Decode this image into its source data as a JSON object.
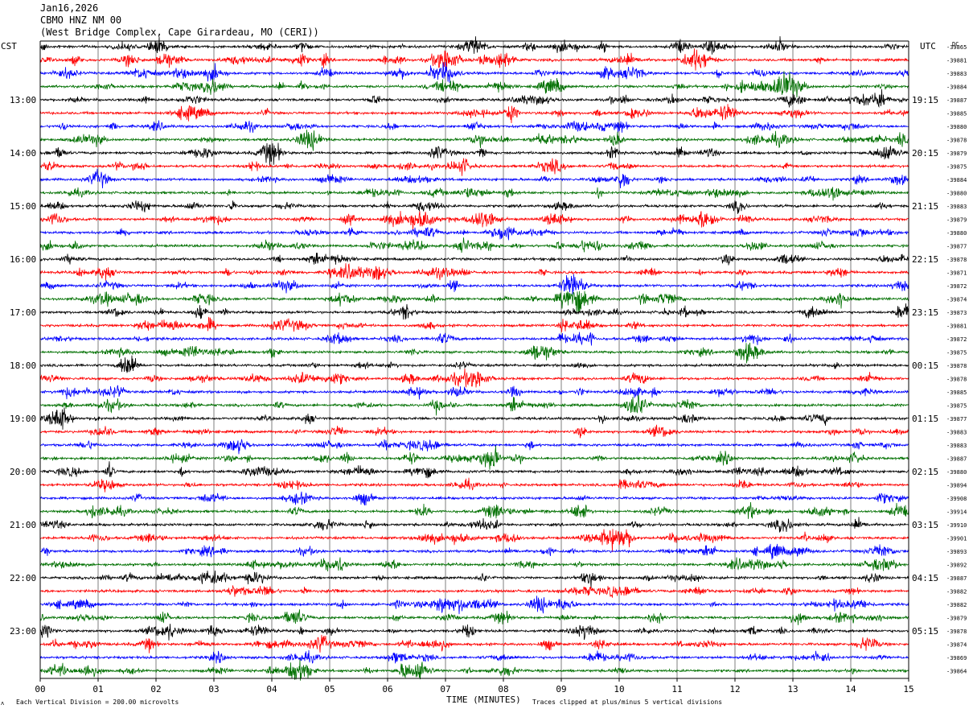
{
  "header": {
    "date": "Jan16,2026",
    "station": "CBMO HNZ NM 00",
    "location": "(West Bridge Complex, Cape Girardeau, MO (CERI))"
  },
  "axes": {
    "left_label": "CST",
    "right_label": "UTC",
    "xlabel": "TIME (MINUTES)",
    "top_right_label": "DC"
  },
  "footer": {
    "scale_note": "Each Vertical Division =  200.00 microvolts",
    "clip_note": "Traces clipped at plus/minus 5 vertical divisions"
  },
  "chart_data": {
    "type": "line",
    "subtype": "helicorder",
    "x_ticks": [
      "00",
      "01",
      "02",
      "03",
      "04",
      "05",
      "06",
      "07",
      "08",
      "09",
      "10",
      "11",
      "12",
      "13",
      "14",
      "15"
    ],
    "xlim": [
      0,
      15
    ],
    "left_hour_labels": [
      "13:00",
      "14:00",
      "15:00",
      "16:00",
      "17:00",
      "18:00",
      "19:00",
      "20:00",
      "21:00",
      "22:00",
      "23:00"
    ],
    "right_hour_labels": [
      "19:15",
      "20:15",
      "21:15",
      "22:15",
      "23:15",
      "00:15",
      "01:15",
      "02:15",
      "03:15",
      "04:15",
      "05:15"
    ],
    "trace_colors": [
      "#000000",
      "#ff0000",
      "#0000ff",
      "#007000"
    ],
    "dc_offsets": [
      "-39865",
      "-39881",
      "-39883",
      "-39884",
      "-39887",
      "-39885",
      "-39880",
      "-39878",
      "-39879",
      "-39875",
      "-39884",
      "-39880",
      "-39883",
      "-39879",
      "-39880",
      "-39877",
      "-39878",
      "-39871",
      "-39872",
      "-39874",
      "-39873",
      "-39881",
      "-39872",
      "-39875",
      "-39878",
      "-39878",
      "-39885",
      "-39875",
      "-39877",
      "-39883",
      "-39883",
      "-39887",
      "-39880",
      "-39894",
      "-39908",
      "-39914",
      "-39910",
      "-39901",
      "-39893",
      "-39892",
      "-39887",
      "-39882",
      "-39882",
      "-39879",
      "-39878",
      "-39874",
      "-39869",
      "-39864"
    ],
    "events": [
      {
        "trace": 1,
        "minute": 7.0,
        "amp": 10
      },
      {
        "trace": 1,
        "minute": 8.0,
        "amp": 7
      },
      {
        "trace": 1,
        "minute": 11.4,
        "amp": 7
      },
      {
        "trace": 2,
        "minute": 7.0,
        "amp": 8
      },
      {
        "trace": 2,
        "minute": 3.0,
        "amp": 6
      },
      {
        "trace": 3,
        "minute": 3.0,
        "amp": 7
      },
      {
        "trace": 3,
        "minute": 12.9,
        "amp": 12
      },
      {
        "trace": 4,
        "minute": 13.0,
        "amp": 6
      },
      {
        "trace": 5,
        "minute": 2.5,
        "amp": 6
      },
      {
        "trace": 8,
        "minute": 4.0,
        "amp": 6
      },
      {
        "trace": 10,
        "minute": 1.0,
        "amp": 5
      },
      {
        "trace": 13,
        "minute": 6.6,
        "amp": 8
      },
      {
        "trace": 13,
        "minute": 7.7,
        "amp": 7
      },
      {
        "trace": 13,
        "minute": 11.5,
        "amp": 8
      },
      {
        "trace": 17,
        "minute": 5.3,
        "amp": 5
      },
      {
        "trace": 18,
        "minute": 9.2,
        "amp": 7
      },
      {
        "trace": 19,
        "minute": 9.2,
        "amp": 12
      },
      {
        "trace": 20,
        "minute": 15.0,
        "amp": 6
      },
      {
        "trace": 22,
        "minute": 12.3,
        "amp": 5
      },
      {
        "trace": 25,
        "minute": 7.5,
        "amp": 9
      },
      {
        "trace": 26,
        "minute": 7.2,
        "amp": 5
      },
      {
        "trace": 37,
        "minute": 10.0,
        "amp": 6
      },
      {
        "trace": 44,
        "minute": 9.4,
        "amp": 7
      },
      {
        "trace": 44,
        "minute": 3.0,
        "amp": 5
      },
      {
        "trace": 45,
        "minute": 14.3,
        "amp": 6
      },
      {
        "trace": 43,
        "minute": 4.4,
        "amp": 6
      },
      {
        "trace": 46,
        "minute": 9.6,
        "amp": 5
      },
      {
        "trace": 47,
        "minute": 4.5,
        "amp": 6
      }
    ]
  }
}
